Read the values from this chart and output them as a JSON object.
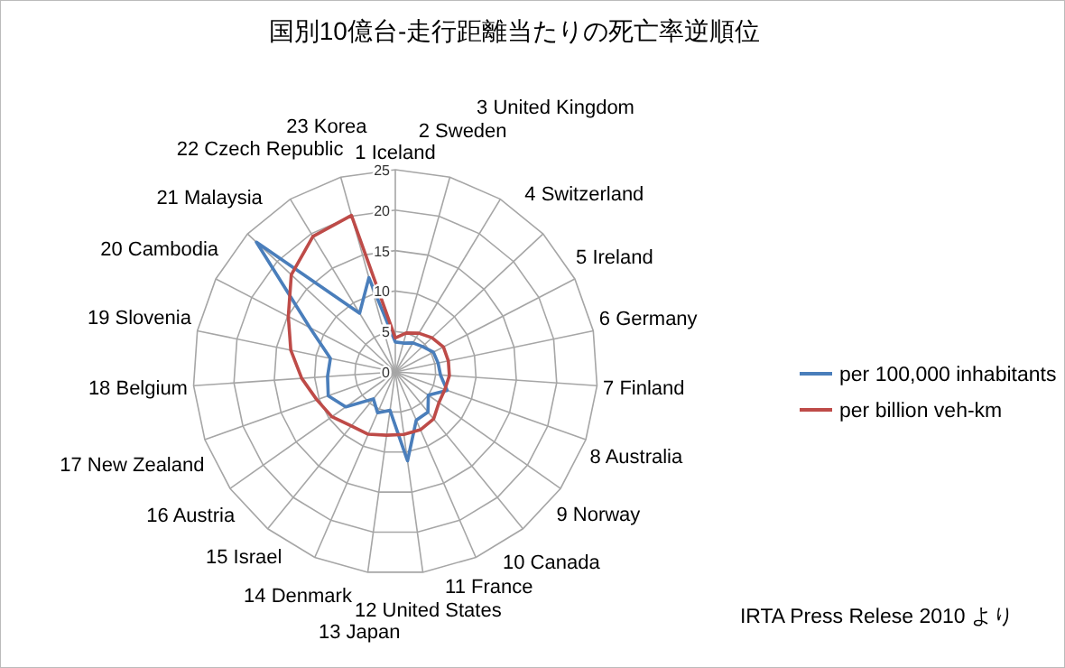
{
  "chart_data": {
    "type": "radar",
    "title": "国別10億台-走行距離当たりの死亡率逆順位",
    "categories": [
      "1 Iceland",
      "2 Sweden",
      "3 United Kingdom",
      "4 Switzerland",
      "5 Ireland",
      "6 Germany",
      "7 Finland",
      "8 Australia",
      "9 Norway",
      "10 Canada",
      "11 France",
      "12 United States",
      "13 Japan",
      "14 Denmark",
      "15 Israel",
      "16 Austria",
      "17 New Zealand",
      "18 Belgium",
      "19 Slovenia",
      "20 Cambodia",
      "21 Malaysia",
      "22 Czech Republic",
      "23 Korea"
    ],
    "series": [
      {
        "name": "per 100,000 inhabitants",
        "color": "#4a7ebb",
        "values": [
          3.7,
          3.7,
          4.2,
          4.6,
          5.3,
          5.4,
          5.6,
          6.8,
          5.0,
          6.4,
          6.5,
          11.1,
          4.8,
          5.5,
          4.3,
          7.5,
          8.8,
          8.4,
          8.2,
          11.9,
          23.5,
          8.5,
          12.1
        ]
      },
      {
        "name": "per billion veh-km",
        "color": "#be4b48",
        "values": [
          4.2,
          5.0,
          5.6,
          6.2,
          6.7,
          6.7,
          6.7,
          6.5,
          6.6,
          7.5,
          7.8,
          7.8,
          7.9,
          8.4,
          8.6,
          9.6,
          10.3,
          11.6,
          13.2,
          14.9,
          17.6,
          19.6,
          20.1
        ]
      }
    ],
    "ylim": [
      0,
      25
    ],
    "yticks": [
      0,
      5,
      10,
      15,
      20,
      25
    ],
    "grid": true,
    "legend": "right",
    "annotations": [
      "IRTA Press Relese 2010 より"
    ]
  }
}
